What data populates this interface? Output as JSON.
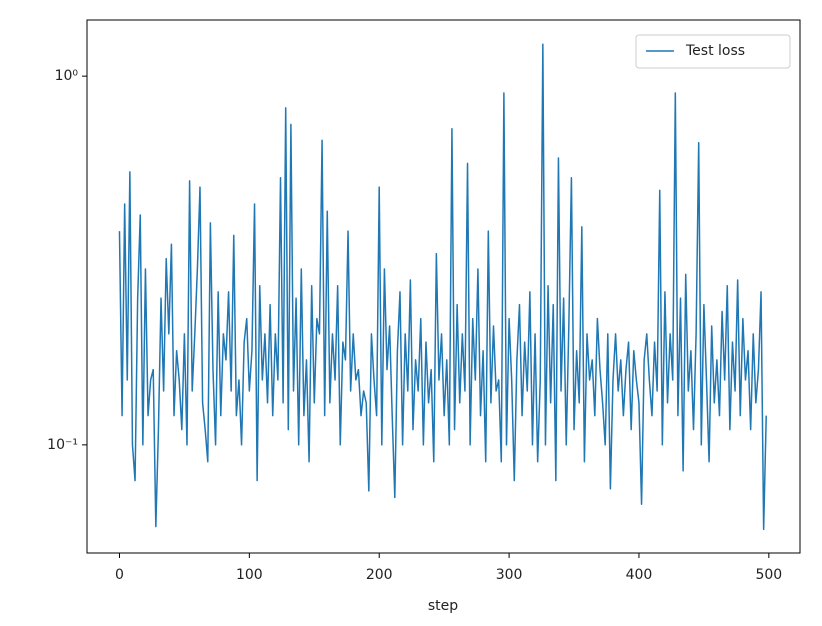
{
  "chart_data": {
    "type": "line",
    "xlabel": "step",
    "log_y": true,
    "legend": "upper right",
    "x": [
      0,
      2,
      4,
      6,
      8,
      10,
      12,
      14,
      16,
      18,
      20,
      22,
      24,
      26,
      28,
      30,
      32,
      34,
      36,
      38,
      40,
      42,
      44,
      46,
      48,
      50,
      52,
      54,
      56,
      58,
      60,
      62,
      64,
      66,
      68,
      70,
      72,
      74,
      76,
      78,
      80,
      82,
      84,
      86,
      88,
      90,
      92,
      94,
      96,
      98,
      100,
      102,
      104,
      106,
      108,
      110,
      112,
      114,
      116,
      118,
      120,
      122,
      124,
      126,
      128,
      130,
      132,
      134,
      136,
      138,
      140,
      142,
      144,
      146,
      148,
      150,
      152,
      154,
      156,
      158,
      160,
      162,
      164,
      166,
      168,
      170,
      172,
      174,
      176,
      178,
      180,
      182,
      184,
      186,
      188,
      190,
      192,
      194,
      196,
      198,
      200,
      202,
      204,
      206,
      208,
      210,
      212,
      214,
      216,
      218,
      220,
      222,
      224,
      226,
      228,
      230,
      232,
      234,
      236,
      238,
      240,
      242,
      244,
      246,
      248,
      250,
      252,
      254,
      256,
      258,
      260,
      262,
      264,
      266,
      268,
      270,
      272,
      274,
      276,
      278,
      280,
      282,
      284,
      286,
      288,
      290,
      292,
      294,
      296,
      298,
      300,
      302,
      304,
      306,
      308,
      310,
      312,
      314,
      316,
      318,
      320,
      322,
      324,
      326,
      328,
      330,
      332,
      334,
      336,
      338,
      340,
      342,
      344,
      346,
      348,
      350,
      352,
      354,
      356,
      358,
      360,
      362,
      364,
      366,
      368,
      370,
      372,
      374,
      376,
      378,
      380,
      382,
      384,
      386,
      388,
      390,
      392,
      394,
      396,
      398,
      400,
      402,
      404,
      406,
      408,
      410,
      412,
      414,
      416,
      418,
      420,
      422,
      424,
      426,
      428,
      430,
      432,
      434,
      436,
      438,
      440,
      442,
      444,
      446,
      448,
      450,
      452,
      454,
      456,
      458,
      460,
      462,
      464,
      466,
      468,
      470,
      472,
      474,
      476,
      478,
      480,
      482,
      484,
      486,
      488,
      490,
      492,
      494,
      496,
      498
    ],
    "series": [
      {
        "name": "Test loss",
        "color": "#1f77b4",
        "values": [
          0.38,
          0.12,
          0.45,
          0.15,
          0.55,
          0.1,
          0.08,
          0.25,
          0.42,
          0.1,
          0.3,
          0.12,
          0.15,
          0.16,
          0.06,
          0.11,
          0.25,
          0.14,
          0.32,
          0.2,
          0.35,
          0.12,
          0.18,
          0.15,
          0.11,
          0.2,
          0.1,
          0.52,
          0.14,
          0.2,
          0.3,
          0.5,
          0.13,
          0.11,
          0.09,
          0.4,
          0.16,
          0.1,
          0.26,
          0.12,
          0.2,
          0.17,
          0.26,
          0.14,
          0.37,
          0.12,
          0.15,
          0.1,
          0.19,
          0.22,
          0.14,
          0.18,
          0.45,
          0.08,
          0.27,
          0.15,
          0.2,
          0.13,
          0.24,
          0.12,
          0.2,
          0.15,
          0.53,
          0.13,
          0.82,
          0.11,
          0.74,
          0.14,
          0.25,
          0.1,
          0.3,
          0.12,
          0.17,
          0.09,
          0.27,
          0.13,
          0.22,
          0.2,
          0.67,
          0.12,
          0.43,
          0.13,
          0.2,
          0.15,
          0.27,
          0.1,
          0.19,
          0.17,
          0.38,
          0.14,
          0.2,
          0.15,
          0.16,
          0.12,
          0.14,
          0.13,
          0.075,
          0.2,
          0.15,
          0.12,
          0.5,
          0.1,
          0.3,
          0.16,
          0.21,
          0.12,
          0.072,
          0.18,
          0.26,
          0.1,
          0.2,
          0.14,
          0.28,
          0.11,
          0.17,
          0.14,
          0.22,
          0.1,
          0.19,
          0.13,
          0.16,
          0.09,
          0.33,
          0.15,
          0.2,
          0.12,
          0.17,
          0.1,
          0.72,
          0.11,
          0.24,
          0.13,
          0.2,
          0.14,
          0.58,
          0.1,
          0.22,
          0.15,
          0.3,
          0.12,
          0.18,
          0.09,
          0.38,
          0.13,
          0.21,
          0.14,
          0.15,
          0.09,
          0.9,
          0.1,
          0.22,
          0.15,
          0.08,
          0.17,
          0.24,
          0.12,
          0.19,
          0.14,
          0.26,
          0.1,
          0.2,
          0.09,
          0.15,
          1.22,
          0.1,
          0.27,
          0.13,
          0.24,
          0.08,
          0.6,
          0.14,
          0.25,
          0.1,
          0.21,
          0.53,
          0.11,
          0.18,
          0.13,
          0.39,
          0.09,
          0.2,
          0.15,
          0.17,
          0.12,
          0.22,
          0.16,
          0.13,
          0.1,
          0.2,
          0.076,
          0.15,
          0.2,
          0.14,
          0.17,
          0.12,
          0.16,
          0.19,
          0.11,
          0.18,
          0.15,
          0.13,
          0.069,
          0.17,
          0.2,
          0.15,
          0.12,
          0.19,
          0.14,
          0.49,
          0.1,
          0.26,
          0.13,
          0.2,
          0.15,
          0.9,
          0.12,
          0.25,
          0.085,
          0.29,
          0.14,
          0.18,
          0.11,
          0.2,
          0.66,
          0.1,
          0.24,
          0.15,
          0.09,
          0.21,
          0.13,
          0.17,
          0.12,
          0.23,
          0.15,
          0.27,
          0.11,
          0.19,
          0.14,
          0.28,
          0.12,
          0.22,
          0.15,
          0.18,
          0.11,
          0.2,
          0.13,
          0.16,
          0.26,
          0.059,
          0.12
        ]
      }
    ],
    "xlim": [
      -25,
      524
    ],
    "xticks": [
      0,
      100,
      200,
      300,
      400,
      500
    ],
    "ylim": [
      0.0509,
      1.42
    ],
    "yticks": [
      {
        "value": 0.1,
        "label": "10⁻¹"
      },
      {
        "value": 1,
        "label": "10⁰"
      }
    ]
  }
}
